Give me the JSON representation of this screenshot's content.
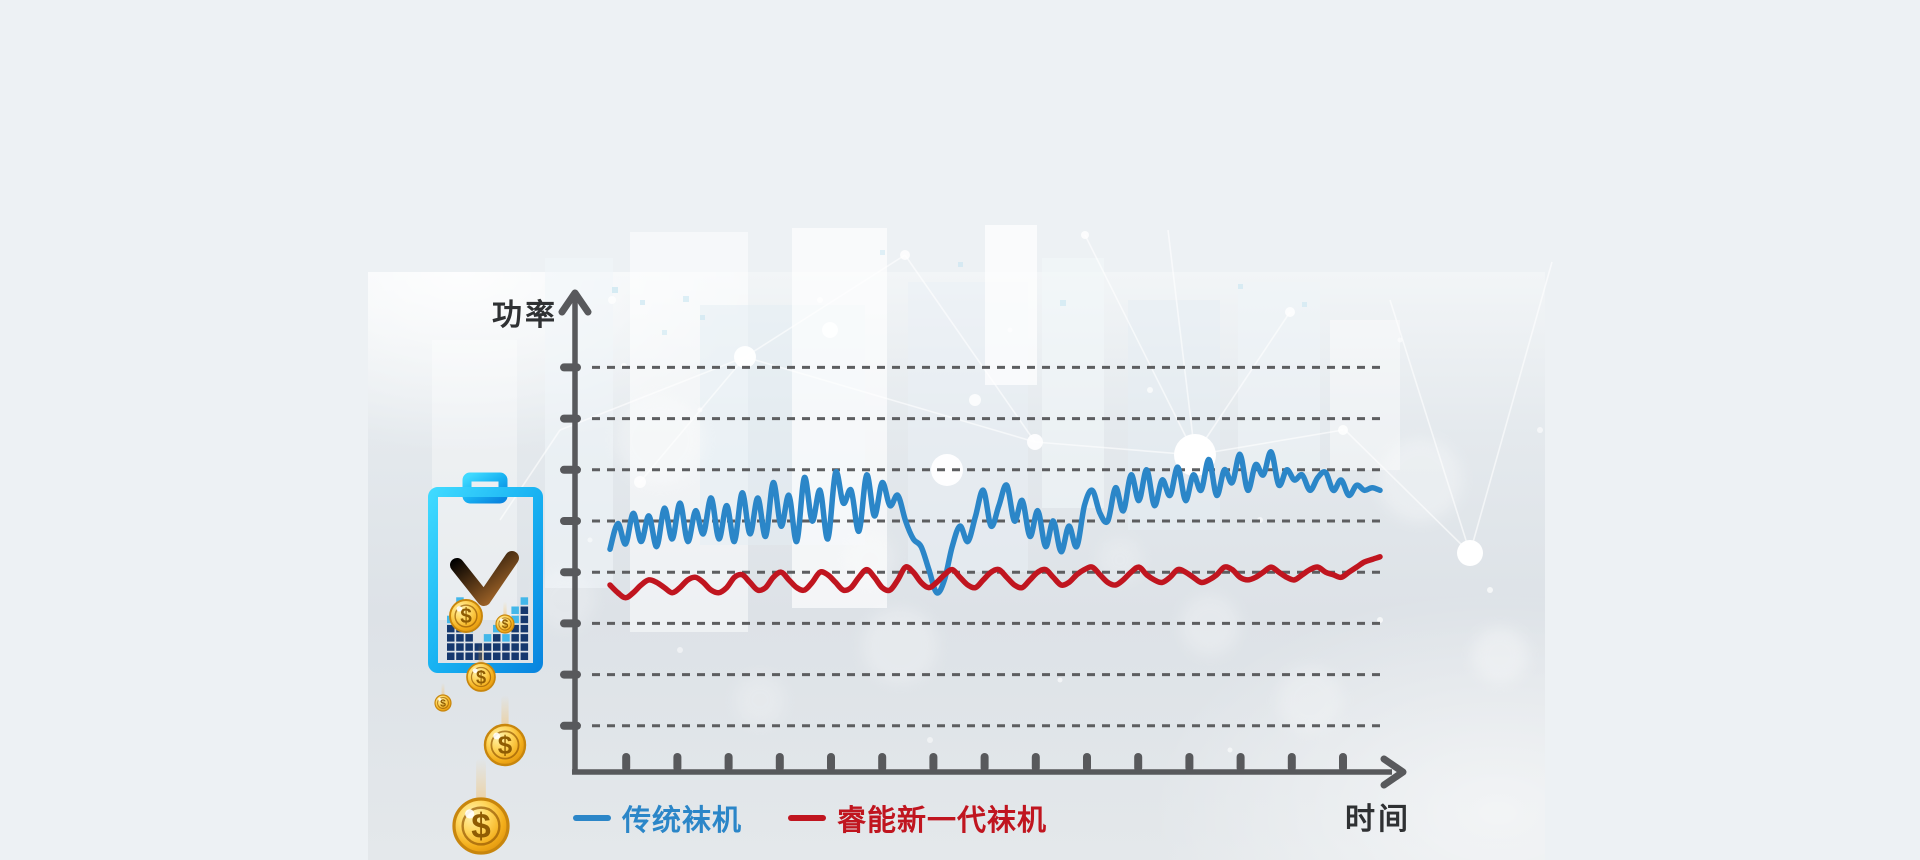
{
  "labels": {
    "power_axis": "功率",
    "time_axis": "时间"
  },
  "chart_data": {
    "type": "line",
    "title": "",
    "xlabel": "时间",
    "ylabel": "功率",
    "grid": "horizontal-dashed",
    "y_gridline_count": 8,
    "x_tick_count": 15,
    "x_tick_labels": [],
    "y_tick_labels": [],
    "ylim": [
      0,
      9
    ],
    "legend_position": "bottom-left",
    "series": [
      {
        "name": "传统袜机",
        "color": "#2b86c8",
        "values": [
          4.45,
          4.95,
          4.55,
          5.15,
          4.6,
          5.1,
          4.5,
          5.25,
          4.65,
          5.35,
          4.6,
          5.2,
          4.75,
          5.45,
          4.65,
          5.3,
          4.6,
          5.55,
          4.75,
          5.45,
          4.7,
          5.75,
          4.9,
          5.5,
          4.6,
          5.85,
          5.0,
          5.6,
          4.65,
          5.95,
          5.35,
          5.6,
          4.8,
          5.9,
          5.1,
          5.75,
          5.3,
          5.5,
          5.0,
          4.65,
          4.5,
          4.05,
          3.6,
          3.85,
          4.5,
          4.9,
          4.6,
          5.1,
          5.6,
          4.9,
          5.3,
          5.7,
          5.0,
          5.4,
          4.7,
          5.2,
          4.5,
          5.0,
          4.4,
          4.9,
          4.5,
          5.3,
          5.6,
          5.15,
          5.0,
          5.65,
          5.2,
          5.9,
          5.4,
          6.0,
          5.3,
          5.8,
          5.5,
          6.05,
          5.4,
          5.9,
          5.6,
          6.2,
          5.5,
          6.0,
          5.75,
          6.3,
          5.6,
          6.1,
          5.9,
          6.35,
          5.7,
          6.0,
          5.8,
          5.9,
          5.6,
          5.85,
          5.95,
          5.6,
          5.8,
          5.5,
          5.7,
          5.6,
          5.65,
          5.6
        ]
      },
      {
        "name": "睿能新一代袜机",
        "color": "#c0151f",
        "values": [
          3.75,
          3.6,
          3.5,
          3.6,
          3.75,
          3.85,
          3.8,
          3.7,
          3.6,
          3.7,
          3.85,
          3.9,
          3.8,
          3.65,
          3.6,
          3.7,
          3.9,
          3.95,
          3.8,
          3.65,
          3.7,
          3.9,
          4.0,
          3.85,
          3.7,
          3.65,
          3.8,
          4.0,
          3.95,
          3.8,
          3.65,
          3.7,
          3.9,
          4.05,
          3.9,
          3.7,
          3.65,
          3.85,
          4.1,
          4.0,
          3.8,
          3.7,
          3.8,
          3.95,
          4.05,
          3.9,
          3.75,
          3.7,
          3.85,
          4.0,
          4.05,
          3.9,
          3.75,
          3.7,
          3.85,
          4.0,
          4.05,
          3.9,
          3.75,
          3.8,
          3.95,
          4.05,
          4.1,
          3.95,
          3.8,
          3.75,
          3.85,
          4.0,
          4.1,
          3.95,
          3.85,
          3.8,
          3.9,
          4.05,
          4.0,
          3.9,
          3.8,
          3.85,
          3.95,
          4.1,
          4.05,
          3.9,
          3.85,
          3.9,
          4.0,
          4.1,
          4.0,
          3.9,
          3.85,
          3.95,
          4.05,
          4.1,
          4.0,
          3.95,
          3.9,
          4.0,
          4.1,
          4.2,
          4.25,
          4.3
        ]
      }
    ]
  },
  "icons": {
    "coin_symbol": "$",
    "battery": {
      "name": "battery-energy-saving",
      "bar_heights": [
        5,
        7,
        4,
        2,
        3,
        4,
        3,
        6,
        7
      ],
      "bar_light_caps": [
        1,
        2,
        1,
        0,
        1,
        1,
        1,
        2,
        1
      ]
    }
  }
}
